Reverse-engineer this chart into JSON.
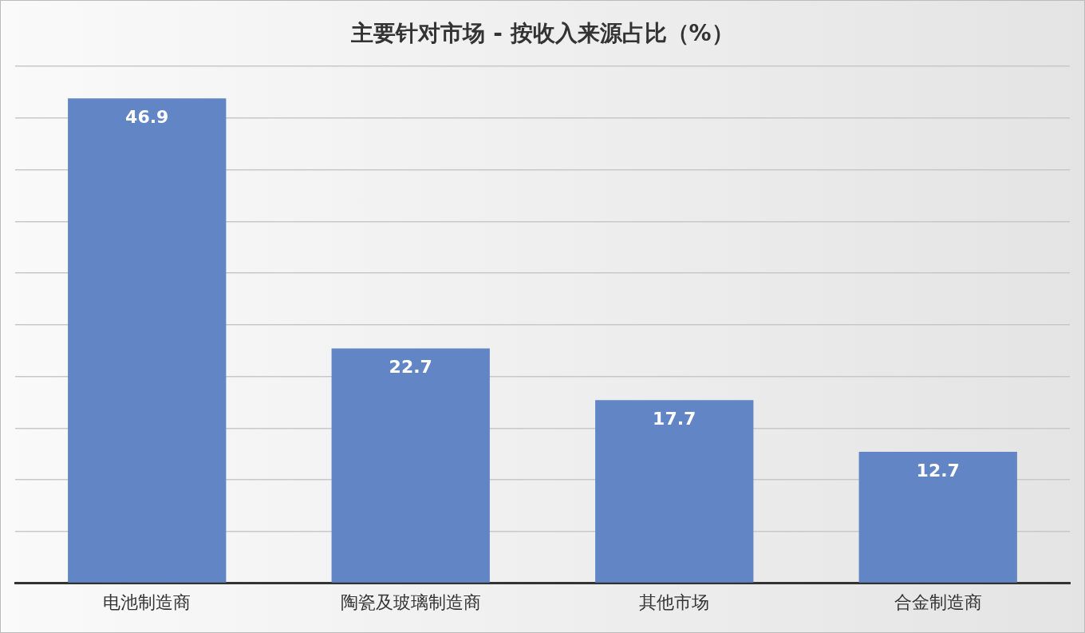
{
  "chart_data": {
    "type": "bar",
    "title": "主要针对市场 - 按收入来源占比（%）",
    "categories": [
      "电池制造商",
      "陶瓷及玻璃制造商",
      "其他市场",
      "合金制造商"
    ],
    "values": [
      46.9,
      22.7,
      17.7,
      12.7
    ],
    "color": "#6285c6",
    "ylim": [
      0,
      50
    ],
    "yticks": [
      {
        "value": 0,
        "label": null
      },
      {
        "value": 5,
        "label": null
      },
      {
        "value": 10,
        "label": null
      },
      {
        "value": 15,
        "label": null
      },
      {
        "value": 20,
        "label": null
      },
      {
        "value": 25,
        "label": null
      },
      {
        "value": 30,
        "label": null
      },
      {
        "value": 35,
        "label": null
      },
      {
        "value": 40,
        "label": null
      },
      {
        "value": 45,
        "label": null
      },
      {
        "value": 50,
        "label": null
      }
    ],
    "grid": "y",
    "tick_labels": "x",
    "data_labels": true,
    "legend": false
  }
}
